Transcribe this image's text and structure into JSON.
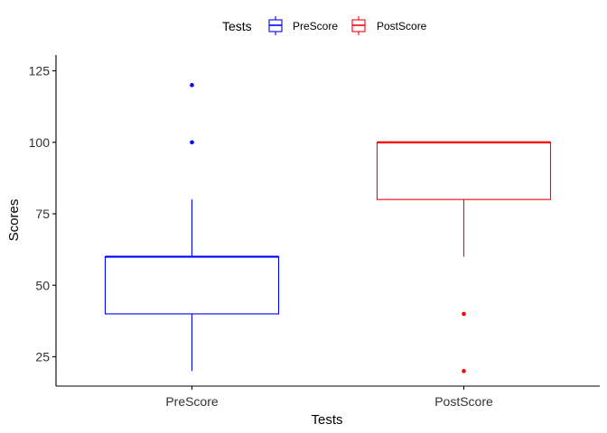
{
  "chart_data": {
    "type": "boxplot",
    "xlabel": "Tests",
    "ylabel": "Scores",
    "ylim": [
      15,
      125
    ],
    "yticks": [
      25,
      50,
      75,
      100,
      125
    ],
    "categories": [
      "PreScore",
      "PostScore"
    ],
    "legend": {
      "title": "Tests",
      "position": "top",
      "entries": [
        "PreScore",
        "PostScore"
      ]
    },
    "series": [
      {
        "name": "PreScore",
        "color": "#0000FF",
        "whisker_low": 20,
        "q1": 40,
        "median": 60,
        "q3": 60,
        "whisker_high": 80,
        "outliers": [
          100,
          120
        ]
      },
      {
        "name": "PostScore",
        "color": "#FF0000",
        "whisker_low": 60,
        "q1": 80,
        "median": 100,
        "q3": 100,
        "whisker_high": 100,
        "outliers": [
          20,
          40
        ]
      }
    ],
    "grid": false
  }
}
